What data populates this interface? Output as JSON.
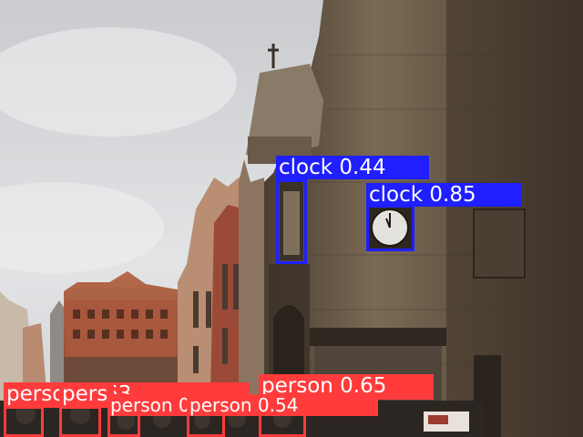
{
  "image": {
    "description_colors": {
      "sky": "#d9dadc",
      "tower_stone": "#6b5a45",
      "tower_dark": "#3a3026",
      "facade_red": "#a45a40",
      "crowd": "#2a2420"
    }
  },
  "detections": [
    {
      "class": "clock",
      "score": "0.44",
      "label": "clock 0.44",
      "color": "#1f1fff"
    },
    {
      "class": "clock",
      "score": "0.85",
      "label": "clock 0.85",
      "color": "#1f1fff"
    },
    {
      "class": "person",
      "score": "0.65",
      "label": "person 0.65",
      "color": "#ff3b3b"
    },
    {
      "class": "person",
      "score": "0.63",
      "label": "person 0.63",
      "color": "#ff3b3b"
    },
    {
      "class": "person",
      "score": "",
      "label": "pers",
      "color": "#ff3b3b"
    },
    {
      "class": "person",
      "score": "0.51",
      "label": "person 0.51",
      "color": "#ff3b3b"
    },
    {
      "class": "person",
      "score": "0.54",
      "label": "person 0.54",
      "color": "#ff3b3b"
    }
  ]
}
